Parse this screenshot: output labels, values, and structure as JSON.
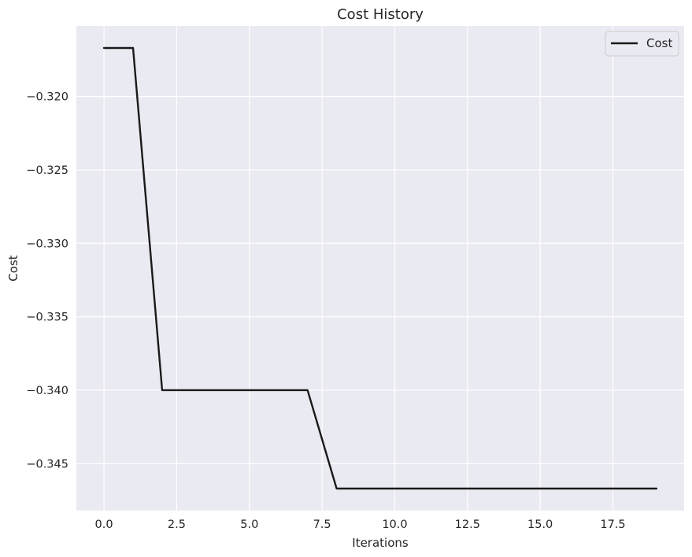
{
  "chart_data": {
    "type": "line",
    "title": "Cost History",
    "xlabel": "Iterations",
    "ylabel": "Cost",
    "xlim": [
      -0.95,
      19.95
    ],
    "ylim": [
      -0.3482,
      -0.3152
    ],
    "x_ticks": [
      0.0,
      2.5,
      5.0,
      7.5,
      10.0,
      12.5,
      15.0,
      17.5
    ],
    "x_tick_labels": [
      "0.0",
      "2.5",
      "5.0",
      "7.5",
      "10.0",
      "12.5",
      "15.0",
      "17.5"
    ],
    "y_ticks": [
      -0.32,
      -0.325,
      -0.33,
      -0.335,
      -0.34,
      -0.345
    ],
    "y_tick_labels": [
      "−0.320",
      "−0.325",
      "−0.330",
      "−0.335",
      "−0.340",
      "−0.345"
    ],
    "grid": true,
    "legend_position": "top-right",
    "series": [
      {
        "name": "Cost",
        "color": "#1a1a1a",
        "x": [
          0,
          1,
          2,
          3,
          4,
          5,
          6,
          7,
          8,
          9,
          10,
          11,
          12,
          13,
          14,
          15,
          16,
          17,
          18,
          19
        ],
        "y": [
          -0.3167,
          -0.3167,
          -0.34,
          -0.34,
          -0.34,
          -0.34,
          -0.34,
          -0.34,
          -0.3467,
          -0.3467,
          -0.3467,
          -0.3467,
          -0.3467,
          -0.3467,
          -0.3467,
          -0.3467,
          -0.3467,
          -0.3467,
          -0.3467,
          -0.3467
        ]
      }
    ],
    "colors": {
      "plot_background": "#eaeaf2",
      "grid": "#ffffff",
      "text": "#262626",
      "legend_border": "#cccccc"
    }
  }
}
